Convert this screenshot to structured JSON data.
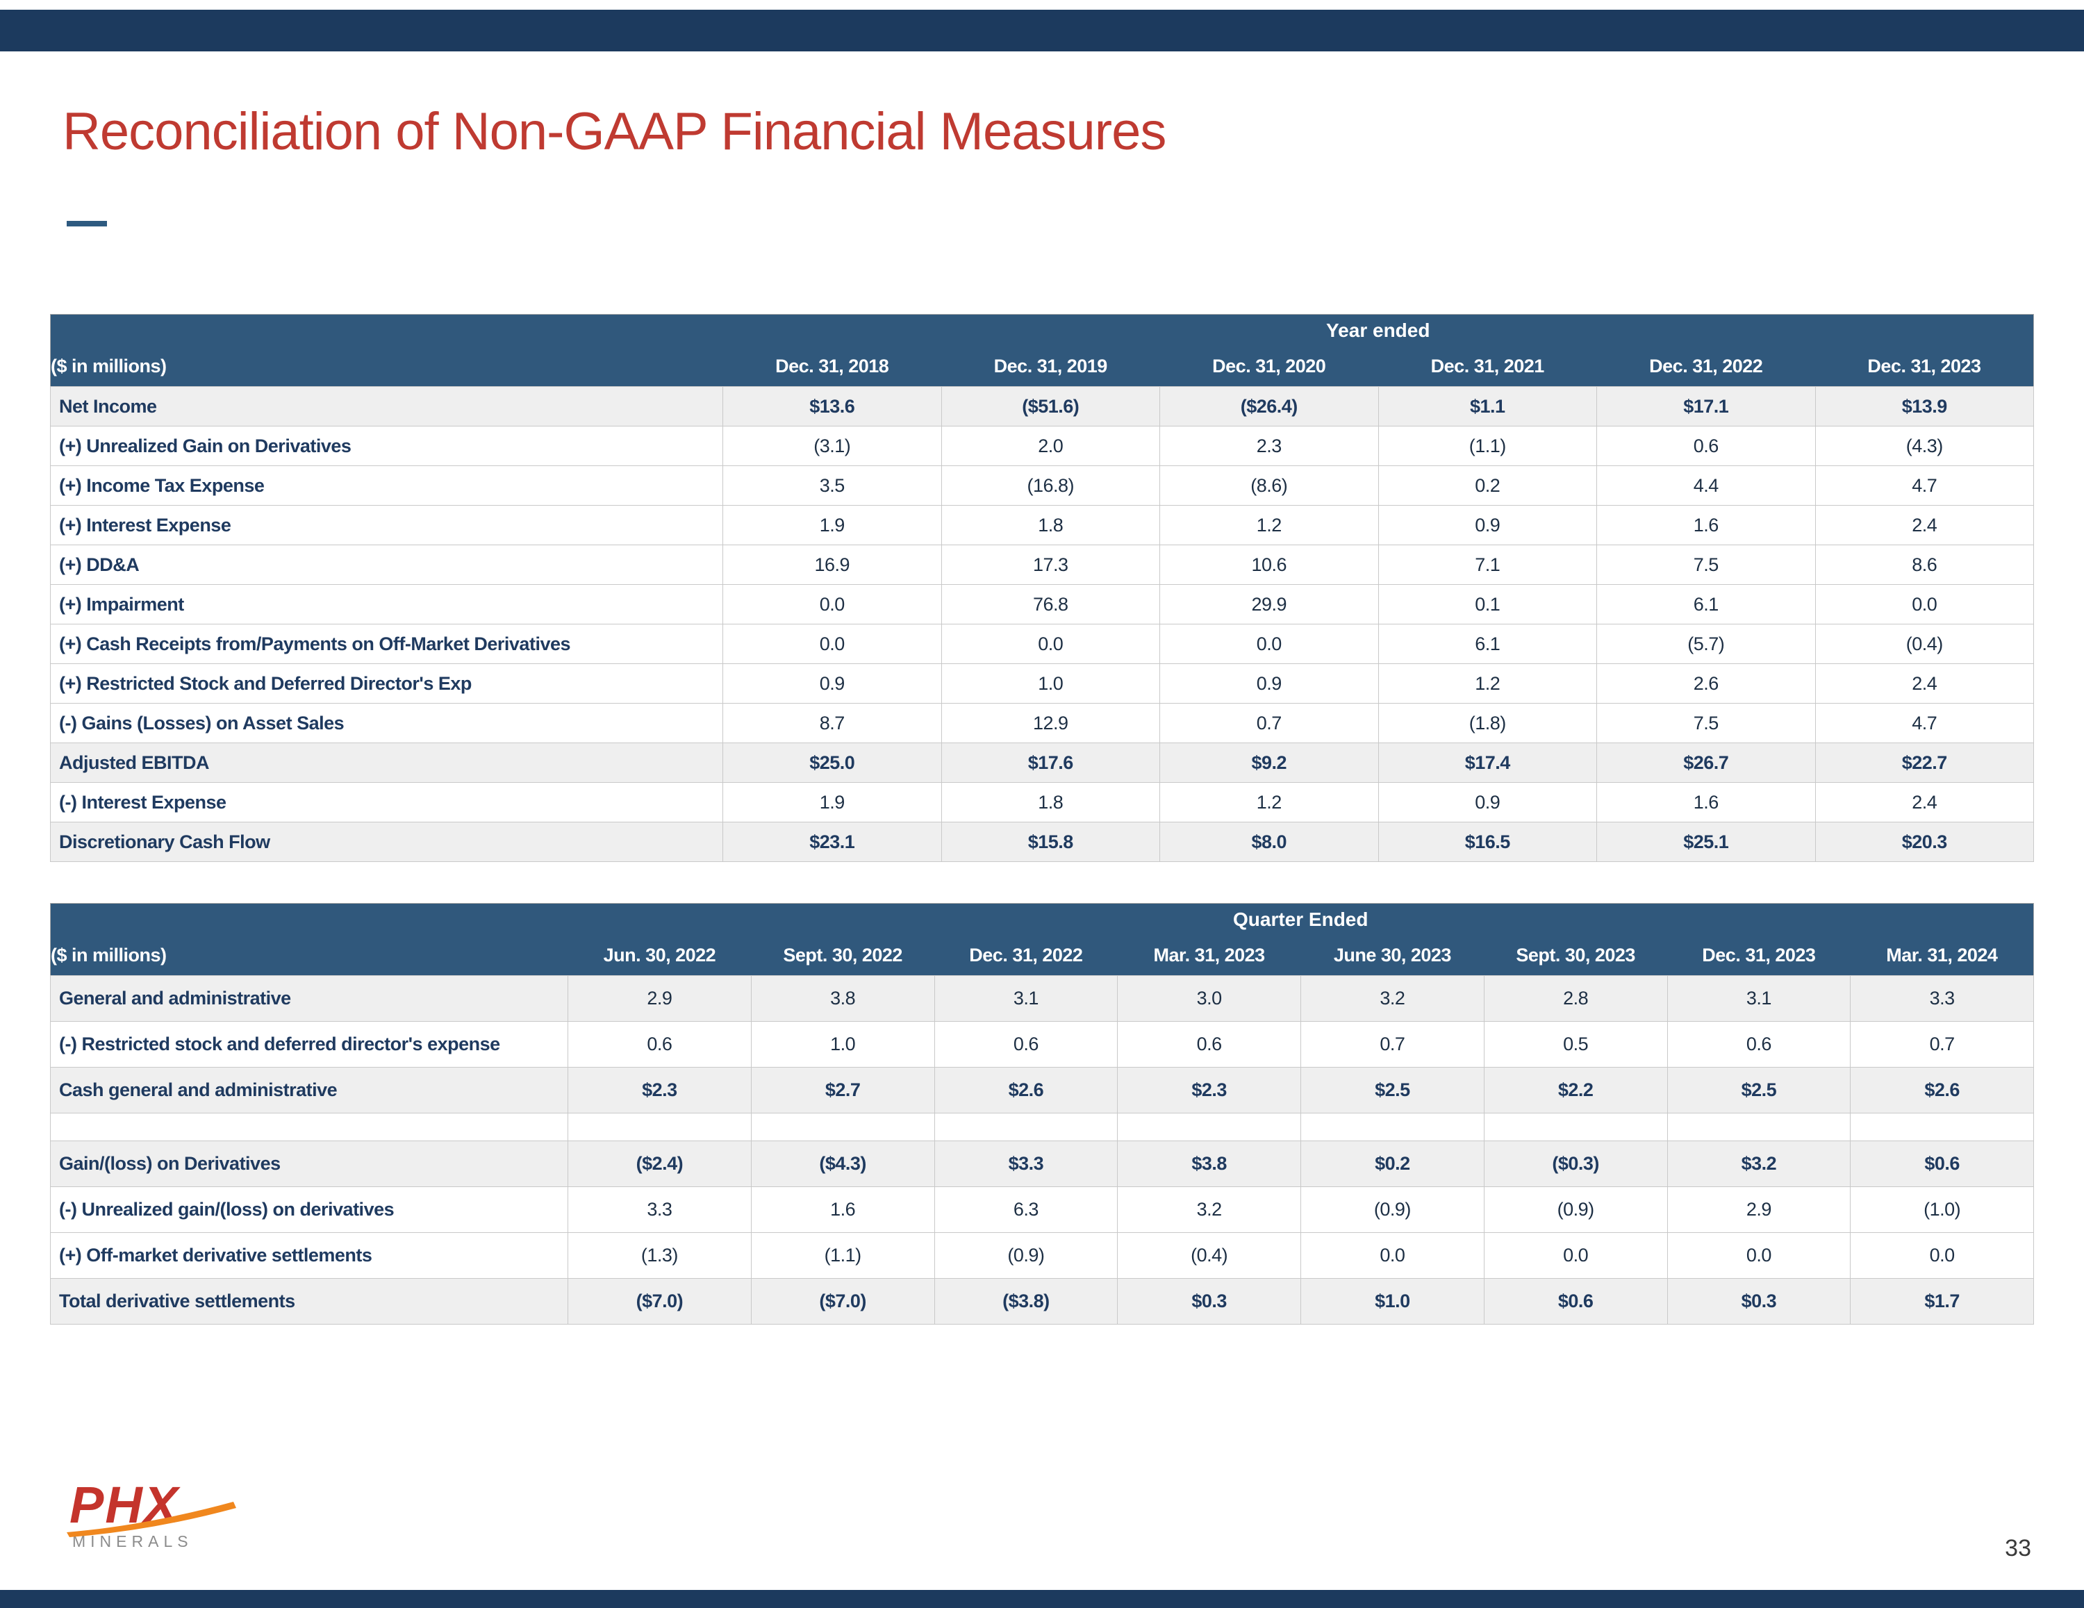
{
  "slide": {
    "title": "Reconciliation of Non-GAAP Financial Measures",
    "page_number": "33"
  },
  "logo": {
    "text": "PHX",
    "subtext": "MINERALS"
  },
  "colors": {
    "title_red": "#bf3a31",
    "navy_band": "#1c3a5e",
    "table_header_blue": "#30587c",
    "row_shade_gray": "#efefef",
    "text_navy": "#1f3a5f",
    "logo_red": "#c4342c",
    "logo_orange": "#f0871e"
  },
  "annual_table": {
    "group_header": "Year ended",
    "unit_label": "($ in millions)",
    "columns": [
      "Dec. 31, 2018",
      "Dec. 31, 2019",
      "Dec. 31, 2020",
      "Dec. 31, 2021",
      "Dec. 31, 2022",
      "Dec. 31, 2023"
    ],
    "rows": [
      {
        "label": "Net Income",
        "style": "subtotal",
        "values": [
          "$13.6",
          "($51.6)",
          "($26.4)",
          "$1.1",
          "$17.1",
          "$13.9"
        ]
      },
      {
        "label": "(+) Unrealized Gain on Derivatives",
        "style": "normal",
        "values": [
          "(3.1)",
          "2.0",
          "2.3",
          "(1.1)",
          "0.6",
          "(4.3)"
        ]
      },
      {
        "label": "(+) Income Tax Expense",
        "style": "normal",
        "values": [
          "3.5",
          "(16.8)",
          "(8.6)",
          "0.2",
          "4.4",
          "4.7"
        ]
      },
      {
        "label": "(+) Interest Expense",
        "style": "normal",
        "values": [
          "1.9",
          "1.8",
          "1.2",
          "0.9",
          "1.6",
          "2.4"
        ]
      },
      {
        "label": "(+) DD&A",
        "style": "normal",
        "values": [
          "16.9",
          "17.3",
          "10.6",
          "7.1",
          "7.5",
          "8.6"
        ]
      },
      {
        "label": "(+) Impairment",
        "style": "normal",
        "values": [
          "0.0",
          "76.8",
          "29.9",
          "0.1",
          "6.1",
          "0.0"
        ]
      },
      {
        "label": "(+) Cash Receipts from/Payments on Off-Market Derivatives",
        "style": "normal",
        "values": [
          "0.0",
          "0.0",
          "0.0",
          "6.1",
          "(5.7)",
          "(0.4)"
        ]
      },
      {
        "label": "(+) Restricted Stock and Deferred Director's Exp",
        "style": "normal",
        "values": [
          "0.9",
          "1.0",
          "0.9",
          "1.2",
          "2.6",
          "2.4"
        ]
      },
      {
        "label": "(-) Gains (Losses) on Asset Sales",
        "style": "normal",
        "values": [
          "8.7",
          "12.9",
          "0.7",
          "(1.8)",
          "7.5",
          "4.7"
        ]
      },
      {
        "label": "Adjusted EBITDA",
        "style": "subtotal",
        "values": [
          "$25.0",
          "$17.6",
          "$9.2",
          "$17.4",
          "$26.7",
          "$22.7"
        ]
      },
      {
        "label": "(-) Interest Expense",
        "style": "normal",
        "values": [
          "1.9",
          "1.8",
          "1.2",
          "0.9",
          "1.6",
          "2.4"
        ]
      },
      {
        "label": "Discretionary Cash Flow",
        "style": "subtotal",
        "values": [
          "$23.1",
          "$15.8",
          "$8.0",
          "$16.5",
          "$25.1",
          "$20.3"
        ]
      }
    ]
  },
  "quarterly_table": {
    "group_header": "Quarter Ended",
    "unit_label": "($ in millions)",
    "columns": [
      "Jun. 30, 2022",
      "Sept. 30, 2022",
      "Dec. 31, 2022",
      "Mar. 31, 2023",
      "June 30, 2023",
      "Sept. 30, 2023",
      "Dec. 31, 2023",
      "Mar. 31, 2024"
    ],
    "rows": [
      {
        "label": "General and administrative",
        "style": "shaded",
        "values": [
          "2.9",
          "3.8",
          "3.1",
          "3.0",
          "3.2",
          "2.8",
          "3.1",
          "3.3"
        ]
      },
      {
        "label": "(-) Restricted stock and deferred director's expense",
        "style": "normal",
        "values": [
          "0.6",
          "1.0",
          "0.6",
          "0.6",
          "0.7",
          "0.5",
          "0.6",
          "0.7"
        ]
      },
      {
        "label": "Cash general and administrative",
        "style": "subtotal",
        "values": [
          "$2.3",
          "$2.7",
          "$2.6",
          "$2.3",
          "$2.5",
          "$2.2",
          "$2.5",
          "$2.6"
        ]
      },
      {
        "label": "",
        "style": "spacer",
        "values": [
          "",
          "",
          "",
          "",
          "",
          "",
          "",
          ""
        ]
      },
      {
        "label": "Gain/(loss) on Derivatives",
        "style": "subtotal",
        "values": [
          "($2.4)",
          "($4.3)",
          "$3.3",
          "$3.8",
          "$0.2",
          "($0.3)",
          "$3.2",
          "$0.6"
        ]
      },
      {
        "label": "(-) Unrealized gain/(loss) on derivatives",
        "style": "normal",
        "values": [
          "3.3",
          "1.6",
          "6.3",
          "3.2",
          "(0.9)",
          "(0.9)",
          "2.9",
          "(1.0)"
        ]
      },
      {
        "label": "(+) Off-market derivative settlements",
        "style": "normal",
        "values": [
          "(1.3)",
          "(1.1)",
          "(0.9)",
          "(0.4)",
          "0.0",
          "0.0",
          "0.0",
          "0.0"
        ]
      },
      {
        "label": "Total derivative settlements",
        "style": "subtotal",
        "values": [
          "($7.0)",
          "($7.0)",
          "($3.8)",
          "$0.3",
          "$1.0",
          "$0.6",
          "$0.3",
          "$1.7"
        ]
      }
    ]
  }
}
